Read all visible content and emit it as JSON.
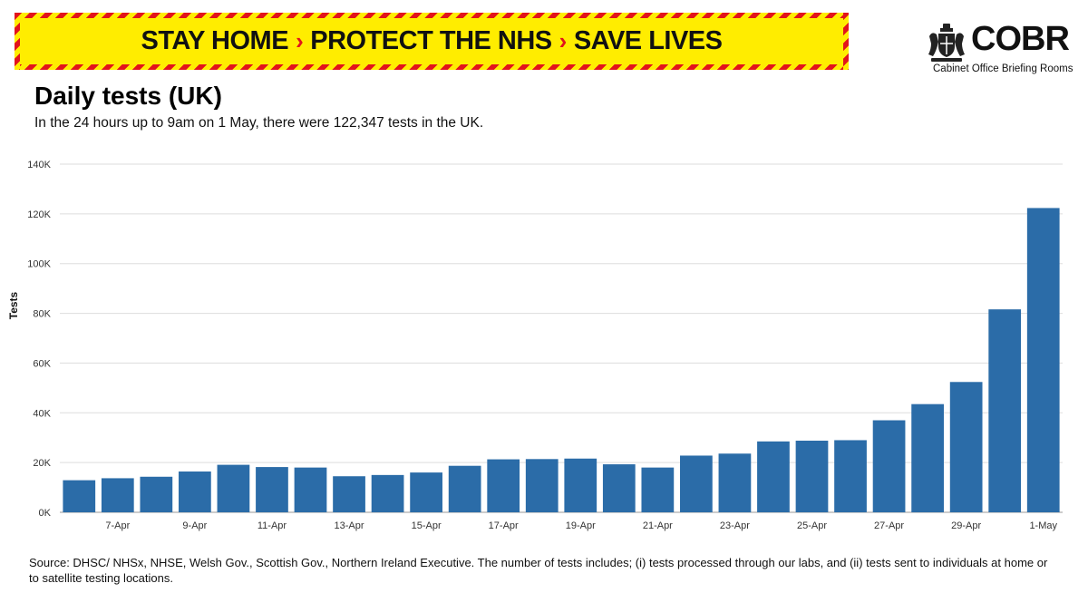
{
  "banner": {
    "part1": "STAY HOME",
    "part2": "PROTECT THE NHS",
    "part3": "SAVE LIVES",
    "separator": "›",
    "background_color": "#ffed00",
    "stripe_color": "#e2141b"
  },
  "logo": {
    "name": "COBR",
    "subtitle": "Cabinet Office Briefing Rooms",
    "icon": "royal-crest-icon"
  },
  "header": {
    "title": "Daily tests (UK)",
    "subtitle": "In the 24 hours up to 9am on 1 May, there were 122,347 tests in the UK."
  },
  "source": "Source: DHSC/ NHSx, NHSE, Welsh Gov., Scottish Gov., Northern Ireland Executive. The number of tests includes; (i) tests processed through our labs, and (ii) tests sent to individuals at home or to satellite testing locations.",
  "chart_data": {
    "type": "bar",
    "title": "Daily tests (UK)",
    "xlabel": "",
    "ylabel": "Tests",
    "bar_color": "#2b6ca8",
    "grid": true,
    "ylim": [
      0,
      140000
    ],
    "yticks": [
      0,
      20000,
      40000,
      60000,
      80000,
      100000,
      120000,
      140000
    ],
    "ytick_labels": [
      "0K",
      "20K",
      "40K",
      "60K",
      "80K",
      "100K",
      "120K",
      "140K"
    ],
    "categories": [
      "6-Apr",
      "7-Apr",
      "8-Apr",
      "9-Apr",
      "10-Apr",
      "11-Apr",
      "12-Apr",
      "13-Apr",
      "14-Apr",
      "15-Apr",
      "16-Apr",
      "17-Apr",
      "18-Apr",
      "19-Apr",
      "20-Apr",
      "21-Apr",
      "22-Apr",
      "23-Apr",
      "24-Apr",
      "25-Apr",
      "26-Apr",
      "27-Apr",
      "28-Apr",
      "29-Apr",
      "30-Apr",
      "1-May"
    ],
    "xtick_labels": [
      "7-Apr",
      "9-Apr",
      "11-Apr",
      "13-Apr",
      "15-Apr",
      "17-Apr",
      "19-Apr",
      "21-Apr",
      "23-Apr",
      "25-Apr",
      "27-Apr",
      "29-Apr",
      "1-May"
    ],
    "values": [
      12900,
      13700,
      14300,
      16400,
      19100,
      18200,
      18000,
      14500,
      15000,
      16000,
      18700,
      21300,
      21400,
      21600,
      19300,
      18000,
      22800,
      23600,
      28500,
      28800,
      29000,
      37000,
      43500,
      52400,
      81600,
      122347
    ]
  }
}
